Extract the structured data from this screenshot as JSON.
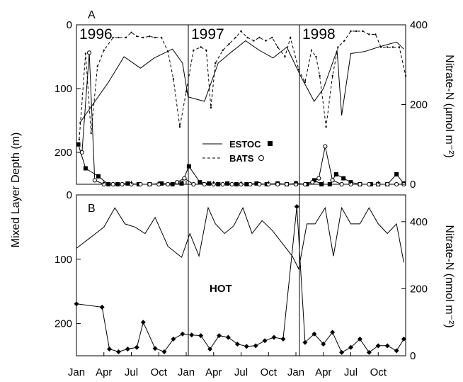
{
  "chart_data": [
    {
      "type": "line",
      "panel": "A",
      "x_axis": {
        "unit": "month index (0 = Jan 1996)",
        "range": [
          0,
          36
        ]
      },
      "y_left": {
        "label": "Mixed Layer Depth (m)",
        "range": [
          250,
          0
        ],
        "ticks": [
          "0",
          "100",
          "200"
        ],
        "inverted": true
      },
      "y_right": {
        "label": "Nitrate-N (µmol m⁻²)",
        "range": [
          0,
          400
        ],
        "ticks": [
          "0",
          "200",
          "400"
        ]
      },
      "year_labels": [
        "1996",
        "1997",
        "1998"
      ],
      "legend": {
        "position": "center",
        "entries": [
          "ESTOC",
          "BATS"
        ]
      },
      "series": [
        {
          "name": "ESTOC",
          "style": "solid",
          "axis": "left",
          "x": [
            0.3,
            3.5,
            5.2,
            7.0,
            8.5,
            10.5,
            11.6,
            12.2,
            14.0,
            15.5,
            17.0,
            18.5,
            20.0,
            21.5,
            23.0,
            24.5,
            26.0,
            27.0,
            28.5,
            29.0,
            30.0,
            31.5,
            33.0,
            35.0,
            35.8
          ],
          "y": [
            155,
            90,
            50,
            68,
            52,
            38,
            60,
            113,
            120,
            60,
            42,
            25,
            40,
            52,
            35,
            80,
            120,
            100,
            40,
            142,
            45,
            42,
            35,
            27,
            38
          ]
        },
        {
          "name": "BATS",
          "style": "dashed",
          "axis": "left",
          "x": [
            0.3,
            1.0,
            1.6,
            2.3,
            3.0,
            4.0,
            4.6,
            5.4,
            6.0,
            6.6,
            7.3,
            8.0,
            8.6,
            9.3,
            10.0,
            10.6,
            11.3,
            12.0,
            12.8,
            13.6,
            14.2,
            14.7,
            15.2,
            16.0,
            16.7,
            17.4,
            18.0,
            18.7,
            19.4,
            20.0,
            20.7,
            21.4,
            22.0,
            22.8,
            23.4,
            24.3,
            25.0,
            25.7,
            26.2,
            26.6,
            27.3,
            28.0,
            28.6,
            29.3,
            30.0,
            30.6,
            31.3,
            32.0,
            32.7,
            33.3,
            34.0,
            34.6,
            35.3,
            36.0
          ],
          "y": [
            180,
            45,
            170,
            65,
            40,
            20,
            20,
            20,
            12,
            18,
            20,
            18,
            20,
            20,
            42,
            85,
            160,
            105,
            40,
            35,
            40,
            130,
            60,
            40,
            30,
            20,
            10,
            20,
            25,
            20,
            25,
            20,
            35,
            50,
            20,
            70,
            90,
            40,
            50,
            80,
            160,
            80,
            35,
            25,
            10,
            10,
            10,
            15,
            15,
            35,
            35,
            35,
            35,
            80
          ]
        },
        {
          "name": "ESTOC",
          "style": "solid-squares",
          "axis": "right",
          "x": [
            0.2,
            1.0,
            2.4,
            3.5,
            4.5,
            5.6,
            6.8,
            8.0,
            9.3,
            10.5,
            11.5,
            12.3,
            13.5,
            14.5,
            15.5,
            16.5,
            17.5,
            18.6,
            19.7,
            20.8,
            22.0,
            23.0,
            24.0,
            25.2,
            26.0,
            26.8,
            27.7,
            28.4,
            29.2,
            30.0,
            31.0,
            32.2,
            33.0,
            34.0,
            35.0,
            35.8
          ],
          "y": [
            100,
            40,
            20,
            0,
            0,
            2,
            0,
            0,
            2,
            0,
            2,
            45,
            5,
            2,
            0,
            2,
            0,
            0,
            2,
            0,
            2,
            0,
            2,
            0,
            10,
            0,
            0,
            25,
            15,
            5,
            0,
            0,
            0,
            0,
            25,
            2
          ]
        },
        {
          "name": "BATS",
          "style": "solid-circles",
          "axis": "right",
          "x": [
            0.6,
            1.4,
            2.0,
            3.0,
            4.0,
            5.0,
            6.0,
            7.0,
            8.0,
            9.0,
            10.0,
            11.0,
            11.8,
            12.8,
            14.0,
            15.0,
            16.0,
            17.0,
            18.0,
            19.0,
            20.0,
            21.0,
            22.0,
            23.0,
            24.0,
            25.0,
            25.8,
            26.5,
            27.2,
            28.0,
            29.0,
            30.0,
            31.0,
            32.0,
            33.0,
            34.0,
            35.0,
            35.8
          ],
          "y": [
            80,
            330,
            10,
            0,
            0,
            0,
            0,
            0,
            0,
            0,
            0,
            5,
            15,
            0,
            0,
            0,
            0,
            0,
            0,
            0,
            0,
            0,
            0,
            0,
            0,
            0,
            5,
            15,
            95,
            10,
            0,
            0,
            0,
            0,
            0,
            0,
            0,
            0
          ]
        }
      ]
    },
    {
      "type": "line",
      "panel": "B",
      "x_axis": {
        "unit": "month index (0 = Jan 1996)",
        "range": [
          0,
          36
        ],
        "tick_labels": [
          "Jan",
          "Apr",
          "Jul",
          "Oct",
          "Jan",
          "Apr",
          "Jul",
          "Oct",
          "Jan",
          "Apr",
          "Jul",
          "Oct"
        ]
      },
      "y_left": {
        "label": "Mixed Layer Depth (m)",
        "range": [
          250,
          0
        ],
        "ticks": [
          "0",
          "100",
          "200"
        ],
        "inverted": true
      },
      "y_right": {
        "label": "Nitrate-N (nmol m⁻²)",
        "range": [
          0,
          480
        ],
        "ticks": [
          "0",
          "200",
          "400"
        ]
      },
      "annotation": "HOT",
      "series": [
        {
          "name": "HOT",
          "style": "solid",
          "axis": "left",
          "x": [
            0.0,
            3.0,
            4.2,
            5.3,
            6.4,
            7.5,
            8.6,
            10.0,
            11.5,
            12.4,
            13.4,
            14.4,
            15.2,
            16.2,
            17.2,
            18.2,
            19.2,
            20.3,
            21.4,
            22.5,
            23.6,
            24.3,
            25.2,
            26.1,
            27.2,
            28.1,
            29.0,
            30.0,
            31.0,
            32.0,
            33.0,
            34.0,
            35.0,
            35.8
          ],
          "y": [
            83,
            50,
            20,
            45,
            50,
            60,
            35,
            80,
            97,
            60,
            95,
            20,
            45,
            60,
            48,
            20,
            60,
            40,
            55,
            75,
            95,
            115,
            45,
            45,
            20,
            95,
            20,
            45,
            45,
            20,
            45,
            60,
            45,
            105
          ]
        },
        {
          "name": "HOT",
          "style": "solid-diamonds",
          "axis": "right",
          "x": [
            0.0,
            2.8,
            3.6,
            4.6,
            5.6,
            6.6,
            7.3,
            8.6,
            9.6,
            10.6,
            11.6,
            12.6,
            13.6,
            14.6,
            15.6,
            16.6,
            17.6,
            18.6,
            19.6,
            20.6,
            21.6,
            22.6,
            24.1,
            25.0,
            26.0,
            27.0,
            28.0,
            29.0,
            30.0,
            31.0,
            32.0,
            33.0,
            34.0,
            35.0,
            35.8
          ],
          "y": [
            155,
            145,
            20,
            12,
            20,
            25,
            100,
            22,
            12,
            50,
            65,
            62,
            60,
            20,
            60,
            55,
            35,
            28,
            30,
            45,
            55,
            50,
            445,
            40,
            65,
            35,
            70,
            10,
            25,
            50,
            10,
            30,
            30,
            15,
            50
          ]
        }
      ]
    }
  ]
}
